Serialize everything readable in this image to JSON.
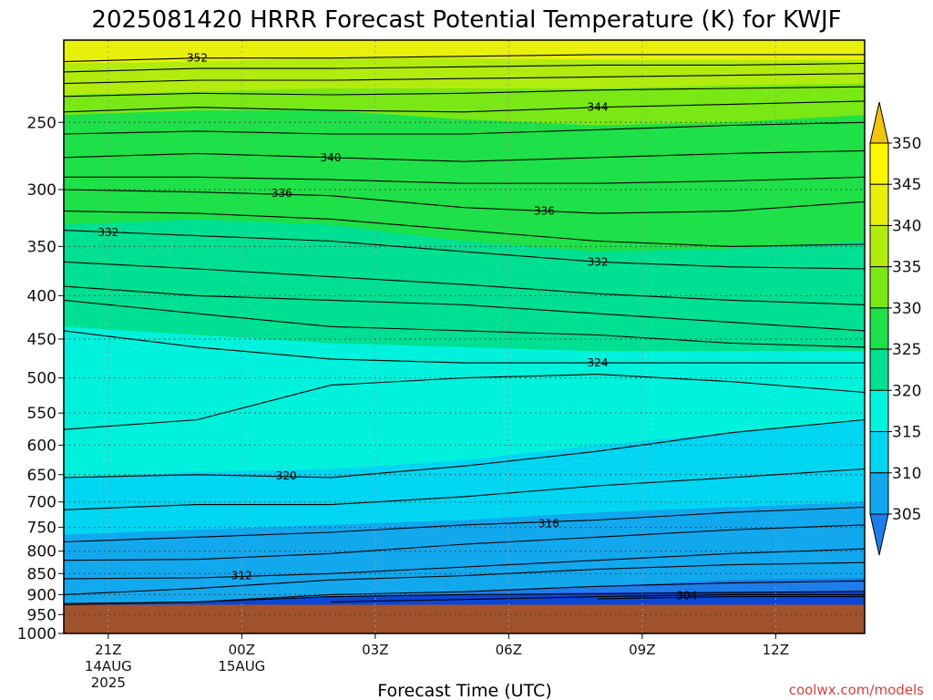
{
  "chart_data": {
    "type": "contour",
    "title": "2025081420 HRRR Forecast Potential Temperature (K) for KWJF",
    "xlabel": "Forecast Time (UTC)",
    "ylabel": "",
    "y_axis": {
      "scale": "log",
      "reversed": true,
      "ylim_hpa": [
        1000,
        200
      ],
      "ticks": [
        "250",
        "300",
        "350",
        "400",
        "450",
        "500",
        "550",
        "600",
        "650",
        "700",
        "750",
        "800",
        "850",
        "900",
        "950",
        "1000"
      ]
    },
    "x_axis": {
      "xlim_hours": [
        -1.0,
        17.0
      ],
      "ticks": [
        {
          "hour": 0,
          "label": "21Z",
          "sub1": "14AUG",
          "sub2": "2025"
        },
        {
          "hour": 3,
          "label": "00Z",
          "sub1": "15AUG",
          "sub2": ""
        },
        {
          "hour": 6,
          "label": "03Z",
          "sub1": "",
          "sub2": ""
        },
        {
          "hour": 9,
          "label": "06Z",
          "sub1": "",
          "sub2": ""
        },
        {
          "hour": 12,
          "label": "09Z",
          "sub1": "",
          "sub2": ""
        },
        {
          "hour": 15,
          "label": "12Z",
          "sub1": "",
          "sub2": ""
        }
      ]
    },
    "surface_pressure_hpa": 925,
    "surface_color": "#a0522d",
    "colorbar": {
      "levels": [
        300,
        305,
        310,
        315,
        320,
        325,
        330,
        335,
        340,
        345,
        350,
        355
      ],
      "colors": [
        "#0a47d8",
        "#1e7dea",
        "#12a8ee",
        "#00d6f2",
        "#00f2dc",
        "#00e092",
        "#1ee048",
        "#7ae814",
        "#b2ec0e",
        "#e8f00c",
        "#fff700",
        "#f2c40a"
      ],
      "labels": [
        "305",
        "310",
        "315",
        "320",
        "325",
        "330",
        "335",
        "340",
        "345",
        "350"
      ]
    },
    "fill_boundaries": [
      {
        "value": 305,
        "p": [
          905,
          905,
          905,
          900,
          895,
          893,
          892
        ]
      },
      {
        "value": 310,
        "p": [
          925,
          918,
          905,
          895,
          880,
          865,
          860
        ]
      },
      {
        "value": 315,
        "p": [
          765,
          755,
          745,
          735,
          720,
          710,
          700
        ]
      },
      {
        "value": 320,
        "p": [
          655,
          645,
          640,
          625,
          600,
          580,
          560
        ]
      },
      {
        "value": 325,
        "p": [
          435,
          445,
          455,
          460,
          465,
          465,
          465
        ]
      },
      {
        "value": 330,
        "p": [
          330,
          325,
          330,
          345,
          355,
          352,
          345
        ]
      },
      {
        "value": 335,
        "p": [
          245,
          242,
          242,
          248,
          252,
          250,
          245
        ]
      },
      {
        "value": 340,
        "p": [
          232,
          230,
          228,
          228,
          228,
          226,
          225
        ]
      },
      {
        "value": 345,
        "p": [
          213,
          212,
          210,
          210,
          211,
          211,
          211
        ]
      }
    ],
    "contours": [
      {
        "value": 302,
        "p": [
          null,
          null,
          null,
          null,
          910,
          905,
          905
        ]
      },
      {
        "value": 304,
        "p": [
          null,
          null,
          918,
          912,
          905,
          900,
          900
        ]
      },
      {
        "value": 306,
        "p": [
          925,
          918,
          905,
          900,
          898,
          895,
          892
        ]
      },
      {
        "value": 308,
        "p": [
          922,
          918,
          900,
          893,
          880,
          872,
          867
        ]
      },
      {
        "value": 310,
        "p": [
          900,
          885,
          865,
          855,
          840,
          830,
          825
        ]
      },
      {
        "value": 312,
        "p": [
          862,
          860,
          850,
          835,
          820,
          805,
          795
        ]
      },
      {
        "value": 314,
        "p": [
          820,
          818,
          805,
          785,
          770,
          755,
          745
        ]
      },
      {
        "value": 316,
        "p": [
          780,
          770,
          760,
          745,
          735,
          720,
          710
        ]
      },
      {
        "value": 318,
        "p": [
          715,
          705,
          705,
          690,
          670,
          655,
          640
        ]
      },
      {
        "value": 320,
        "p": [
          655,
          650,
          655,
          635,
          610,
          580,
          560
        ]
      },
      {
        "value": 322,
        "p": [
          575,
          560,
          510,
          500,
          495,
          505,
          520
        ]
      },
      {
        "value": 324,
        "p": [
          440,
          460,
          475,
          480,
          480,
          480,
          480
        ]
      },
      {
        "value": 326,
        "p": [
          405,
          420,
          435,
          440,
          445,
          455,
          460
        ]
      },
      {
        "value": 328,
        "p": [
          390,
          400,
          405,
          410,
          420,
          430,
          440
        ]
      },
      {
        "value": 330,
        "p": [
          365,
          372,
          380,
          388,
          398,
          405,
          410
        ]
      },
      {
        "value": 332,
        "p": [
          335,
          340,
          345,
          355,
          365,
          370,
          372
        ]
      },
      {
        "value": 334,
        "p": [
          318,
          320,
          325,
          335,
          345,
          350,
          348
        ]
      },
      {
        "value": 336,
        "p": [
          300,
          302,
          305,
          315,
          320,
          318,
          310
        ]
      },
      {
        "value": 338,
        "p": [
          290,
          290,
          292,
          295,
          295,
          293,
          290
        ]
      },
      {
        "value": 340,
        "p": [
          275,
          272,
          275,
          278,
          275,
          272,
          270
        ]
      },
      {
        "value": 342,
        "p": [
          258,
          256,
          258,
          258,
          255,
          252,
          250
        ]
      },
      {
        "value": 344,
        "p": [
          243,
          240,
          242,
          243,
          240,
          238,
          236
        ]
      },
      {
        "value": 346,
        "p": [
          233,
          231,
          232,
          231,
          229,
          228,
          227
        ]
      },
      {
        "value": 348,
        "p": [
          225,
          223,
          223,
          222,
          221,
          220,
          219
        ]
      },
      {
        "value": 350,
        "p": [
          218,
          216,
          216,
          215,
          214,
          214,
          213
        ]
      },
      {
        "value": 352,
        "p": [
          212,
          210,
          210,
          209,
          208,
          208,
          208
        ]
      }
    ],
    "contour_x_hours": [
      -1,
      2,
      5,
      8,
      11,
      14,
      17
    ],
    "contour_labels": [
      {
        "text": "352",
        "hour": 2.0,
        "p": 210
      },
      {
        "text": "344",
        "hour": 11.0,
        "p": 240
      },
      {
        "text": "340",
        "hour": 5.0,
        "p": 275
      },
      {
        "text": "336",
        "hour": 3.9,
        "p": 303
      },
      {
        "text": "336",
        "hour": 9.8,
        "p": 318
      },
      {
        "text": "332",
        "hour": 0.0,
        "p": 337
      },
      {
        "text": "332",
        "hour": 11.0,
        "p": 365
      },
      {
        "text": "324",
        "hour": 11.0,
        "p": 480
      },
      {
        "text": "320",
        "hour": 4.0,
        "p": 652
      },
      {
        "text": "316",
        "hour": 9.9,
        "p": 742
      },
      {
        "text": "312",
        "hour": 3.0,
        "p": 855
      },
      {
        "text": "304",
        "hour": 13.0,
        "p": 902
      }
    ],
    "credit": "coolwx.com/models"
  }
}
